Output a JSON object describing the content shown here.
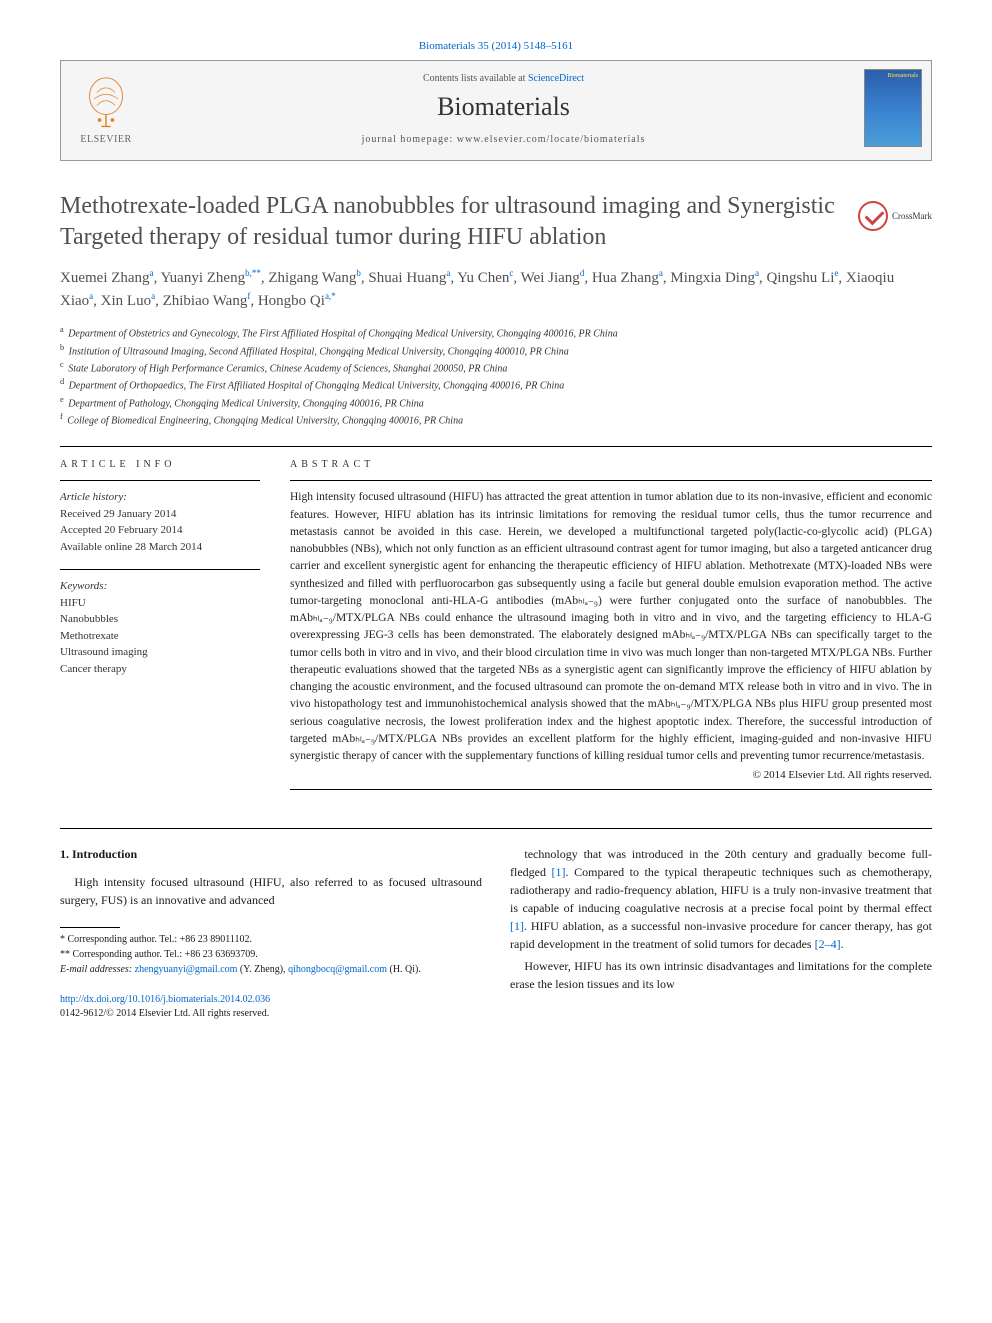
{
  "citation": "Biomaterials 35 (2014) 5148–5161",
  "header": {
    "contents_pre": "Contents lists available at ",
    "contents_link": "ScienceDirect",
    "journal": "Biomaterials",
    "homepage_pre": "journal homepage: ",
    "homepage_url": "www.elsevier.com/locate/biomaterials",
    "publisher": "ELSEVIER",
    "cover_label": "Biomaterials"
  },
  "crossmark": "CrossMark",
  "title": "Methotrexate-loaded PLGA nanobubbles for ultrasound imaging and Synergistic Targeted therapy of residual tumor during HIFU ablation",
  "authors_html": "Xuemei Zhang<sup>a</sup>, Yuanyi Zheng<sup>b,**</sup>, Zhigang Wang<sup>b</sup>, Shuai Huang<sup>a</sup>, Yu Chen<sup>c</sup>, Wei Jiang<sup>d</sup>, Hua Zhang<sup>a</sup>, Mingxia Ding<sup>a</sup>, Qingshu Li<sup>e</sup>, Xiaoqiu Xiao<sup>a</sup>, Xin Luo<sup>a</sup>, Zhibiao Wang<sup>f</sup>, Hongbo Qi<sup>a,*</sup>",
  "affiliations": [
    {
      "sup": "a",
      "text": "Department of Obstetrics and Gynecology, The First Affiliated Hospital of Chongqing Medical University, Chongqing 400016, PR China"
    },
    {
      "sup": "b",
      "text": "Institution of Ultrasound Imaging, Second Affiliated Hospital, Chongqing Medical University, Chongqing 400010, PR China"
    },
    {
      "sup": "c",
      "text": "State Laboratory of High Performance Ceramics, Chinese Academy of Sciences, Shanghai 200050, PR China"
    },
    {
      "sup": "d",
      "text": "Department of Orthopaedics, The First Affiliated Hospital of Chongqing Medical University, Chongqing 400016, PR China"
    },
    {
      "sup": "e",
      "text": "Department of Pathology, Chongqing Medical University, Chongqing 400016, PR China"
    },
    {
      "sup": "f",
      "text": "College of Biomedical Engineering, Chongqing Medical University, Chongqing 400016, PR China"
    }
  ],
  "info": {
    "heading": "ARTICLE INFO",
    "history_label": "Article history:",
    "received": "Received 29 January 2014",
    "accepted": "Accepted 20 February 2014",
    "online": "Available online 28 March 2014",
    "keywords_label": "Keywords:",
    "keywords": [
      "HIFU",
      "Nanobubbles",
      "Methotrexate",
      "Ultrasound imaging",
      "Cancer therapy"
    ]
  },
  "abstract": {
    "heading": "ABSTRACT",
    "text": "High intensity focused ultrasound (HIFU) has attracted the great attention in tumor ablation due to its non-invasive, efficient and economic features. However, HIFU ablation has its intrinsic limitations for removing the residual tumor cells, thus the tumor recurrence and metastasis cannot be avoided in this case. Herein, we developed a multifunctional targeted poly(lactic-co-glycolic acid) (PLGA) nanobubbles (NBs), which not only function as an efficient ultrasound contrast agent for tumor imaging, but also a targeted anticancer drug carrier and excellent synergistic agent for enhancing the therapeutic efficiency of HIFU ablation. Methotrexate (MTX)-loaded NBs were synthesized and filled with perfluorocarbon gas subsequently using a facile but general double emulsion evaporation method. The active tumor-targeting monoclonal anti-HLA-G antibodies (mAbₕₗₐ₋₉) were further conjugated onto the surface of nanobubbles. The mAbₕₗₐ₋₉/MTX/PLGA NBs could enhance the ultrasound imaging both in vitro and in vivo, and the targeting efficiency to HLA-G overexpressing JEG-3 cells has been demonstrated. The elaborately designed mAbₕₗₐ₋₉/MTX/PLGA NBs can specifically target to the tumor cells both in vitro and in vivo, and their blood circulation time in vivo was much longer than non-targeted MTX/PLGA NBs. Further therapeutic evaluations showed that the targeted NBs as a synergistic agent can significantly improve the efficiency of HIFU ablation by changing the acoustic environment, and the focused ultrasound can promote the on-demand MTX release both in vitro and in vivo. The in vivo histopathology test and immunohistochemical analysis showed that the mAbₕₗₐ₋₉/MTX/PLGA NBs plus HIFU group presented most serious coagulative necrosis, the lowest proliferation index and the highest apoptotic index. Therefore, the successful introduction of targeted mAbₕₗₐ₋₉/MTX/PLGA NBs provides an excellent platform for the highly efficient, imaging-guided and non-invasive HIFU synergistic therapy of cancer with the supplementary functions of killing residual tumor cells and preventing tumor recurrence/metastasis.",
    "copyright": "© 2014 Elsevier Ltd. All rights reserved."
  },
  "body": {
    "intro_heading": "1. Introduction",
    "para1": "High intensity focused ultrasound (HIFU, also referred to as focused ultrasound surgery, FUS) is an innovative and advanced",
    "para2_pre": "technology that was introduced in the 20th century and gradually become full-fledged ",
    "ref1": "[1]",
    "para2_mid": ". Compared to the typical therapeutic techniques such as chemotherapy, radiotherapy and radio-frequency ablation, HIFU is a truly non-invasive treatment that is capable of inducing coagulative necrosis at a precise focal point by thermal effect ",
    "ref1b": "[1]",
    "para2_mid2": ". HIFU ablation, as a successful non-invasive procedure for cancer therapy, has got rapid development in the treatment of solid tumors for decades ",
    "ref24": "[2–4]",
    "para2_end": ".",
    "para3": "However, HIFU has its own intrinsic disadvantages and limitations for the complete erase the lesion tissues and its low"
  },
  "footnotes": {
    "corr1": "* Corresponding author. Tel.: +86 23 89011102.",
    "corr2": "** Corresponding author. Tel.: +86 23 63693709.",
    "email_label": "E-mail addresses: ",
    "email1": "zhengyuanyi@gmail.com",
    "email1_name": " (Y. Zheng), ",
    "email2": "qihongbocq@gmail.com",
    "email2_name": " (H. Qi)."
  },
  "doi": {
    "url": "http://dx.doi.org/10.1016/j.biomaterials.2014.02.036",
    "issn": "0142-9612/© 2014 Elsevier Ltd. All rights reserved."
  }
}
